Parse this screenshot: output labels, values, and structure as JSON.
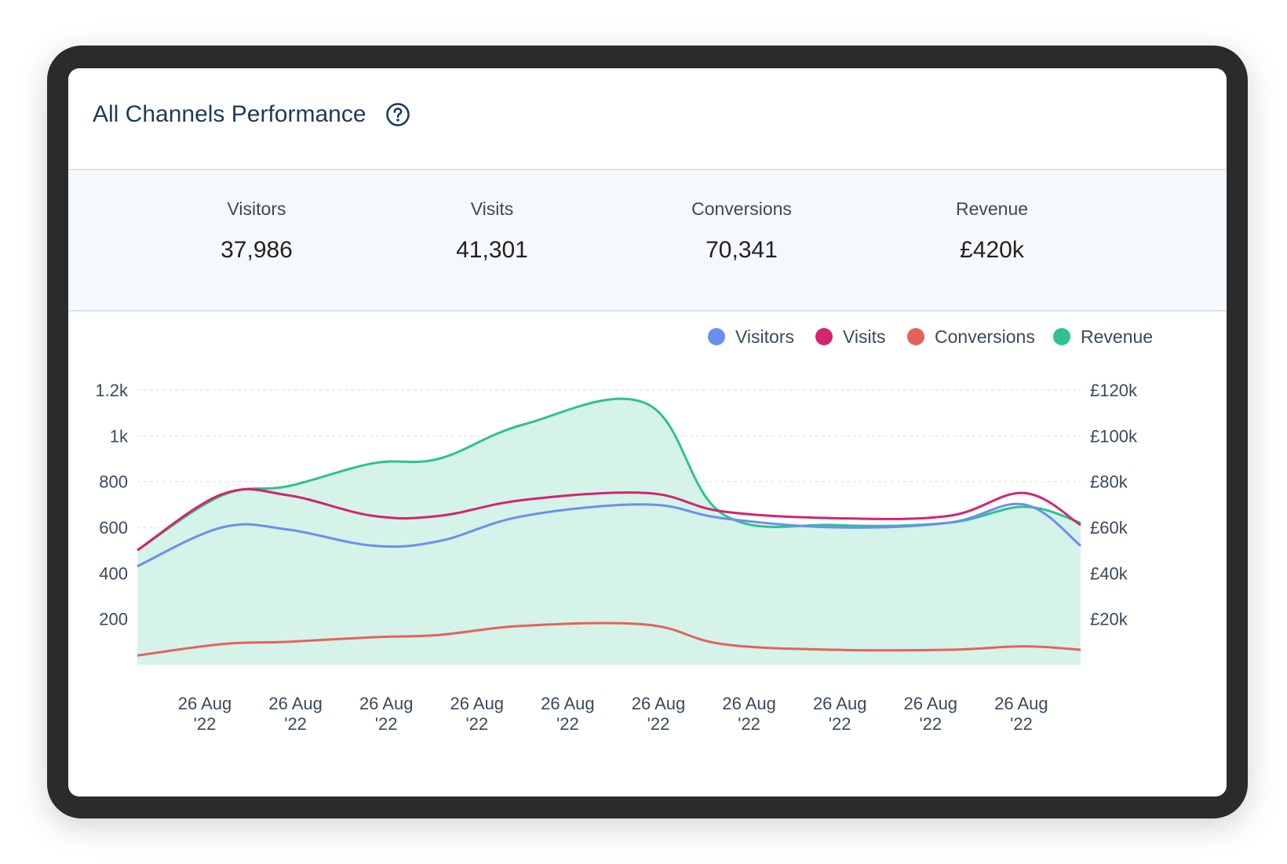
{
  "panel": {
    "title": "All Channels Performance",
    "help_icon": "question-circle-icon"
  },
  "kpis": [
    {
      "label": "Visitors",
      "value": "37,986"
    },
    {
      "label": "Visits",
      "value": "41,301"
    },
    {
      "label": "Conversions",
      "value": "70,341"
    },
    {
      "label": "Revenue",
      "value": "£420k"
    }
  ],
  "chart_data": {
    "type": "line",
    "legend_position": "top-right",
    "grid": true,
    "x_ticks": [
      [
        "26 Aug",
        "'22"
      ],
      [
        "26 Aug",
        "'22"
      ],
      [
        "26 Aug",
        "'22"
      ],
      [
        "26 Aug",
        "'22"
      ],
      [
        "26 Aug",
        "'22"
      ],
      [
        "26 Aug",
        "'22"
      ],
      [
        "26 Aug",
        "'22"
      ],
      [
        "26 Aug",
        "'22"
      ],
      [
        "26 Aug",
        "'22"
      ],
      [
        "26 Aug",
        "'22"
      ]
    ],
    "y_left": {
      "ticks": [
        "200",
        "400",
        "600",
        "800",
        "1k",
        "1.2k"
      ],
      "values": [
        200,
        400,
        600,
        800,
        1000,
        1200
      ],
      "range": [
        0,
        1200
      ]
    },
    "y_right": {
      "ticks": [
        "£20k",
        "£40k",
        "£60k",
        "£80k",
        "£100k",
        "£120k"
      ],
      "values": [
        20000,
        40000,
        60000,
        80000,
        100000,
        120000
      ],
      "range": [
        0,
        120000
      ]
    },
    "x_positions": [
      0,
      0.9,
      1.6,
      2.5,
      3.2,
      4.1,
      5.4,
      6.2,
      7.4,
      8.6,
      9.4,
      10.0
    ],
    "series": [
      {
        "name": "Revenue",
        "color": "#2ec28e",
        "fill": "#d5f3e8",
        "axis": "right",
        "values": [
          50000,
          74000,
          78000,
          88000,
          90000,
          105000,
          114000,
          66000,
          61000,
          62000,
          69000,
          62000
        ]
      },
      {
        "name": "Visitors",
        "color": "#6b8ff0",
        "axis": "left",
        "values": [
          430,
          600,
          590,
          520,
          540,
          650,
          700,
          640,
          600,
          620,
          700,
          520
        ]
      },
      {
        "name": "Visits",
        "color": "#d3246f",
        "axis": "left",
        "values": [
          500,
          745,
          740,
          650,
          650,
          720,
          750,
          670,
          640,
          650,
          750,
          610
        ]
      },
      {
        "name": "Conversions",
        "color": "#e3635b",
        "axis": "left",
        "values": [
          40,
          90,
          100,
          120,
          130,
          170,
          175,
          90,
          65,
          65,
          80,
          65
        ]
      }
    ]
  }
}
